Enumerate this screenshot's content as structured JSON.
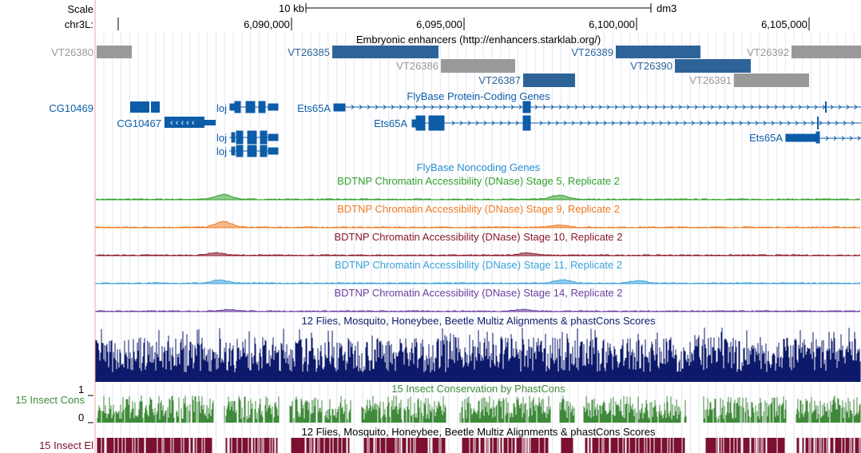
{
  "ruler": {
    "scale_label": "Scale",
    "chrom_label": "chr3L:",
    "scale_bar_text": "10 kb",
    "assembly": "dm3",
    "ticks": [
      "6,090,000",
      "6,095,000",
      "6,100,000",
      "6,105,000"
    ]
  },
  "tracks": {
    "enhancers": {
      "title": "Embryonic enhancers (http://enhancers.starklab.org/)",
      "items": [
        {
          "name": "VT26380",
          "color": "#999999"
        },
        {
          "name": "VT26385",
          "color": "#2e6399"
        },
        {
          "name": "VT26386",
          "color": "#999999"
        },
        {
          "name": "VT26387",
          "color": "#2e6399"
        },
        {
          "name": "VT26389",
          "color": "#2e6399"
        },
        {
          "name": "VT26390",
          "color": "#2e6399"
        },
        {
          "name": "VT26391",
          "color": "#999999"
        },
        {
          "name": "VT26392",
          "color": "#999999"
        }
      ]
    },
    "protein_coding": {
      "title": "FlyBase Protein-Coding Genes",
      "color": "#0c5ca8",
      "genes": [
        "CG10469",
        "CG10467",
        "loj",
        "loj",
        "loj",
        "Ets65A",
        "Ets65A",
        "Ets65A"
      ]
    },
    "noncoding": {
      "title": "FlyBase Noncoding Genes",
      "color": "#2a8fd0"
    },
    "dnase": [
      {
        "title": "BDTNP Chromatin Accessibility (DNase) Stage 5, Replicate 2",
        "color": "#33a02c"
      },
      {
        "title": "BDTNP Chromatin Accessibility (DNase) Stage 9, Replicate 2",
        "color": "#f07b22"
      },
      {
        "title": "BDTNP Chromatin Accessibility (DNase) Stage 10, Replicate 2",
        "color": "#8b1a2b"
      },
      {
        "title": "BDTNP Chromatin Accessibility (DNase) Stage 11, Replicate 2",
        "color": "#3aa3d8"
      },
      {
        "title": "BDTNP Chromatin Accessibility (DNase) Stage 14, Replicate 2",
        "color": "#6b3fa0"
      }
    ],
    "multiz": {
      "title": "12 Flies, Mosquito, Honeybee, Beetle Multiz Alignments & phastCons Scores",
      "color": "#0d1a6b"
    },
    "phastcons": {
      "title": "15 Insect Conservation by PhastCons",
      "side_label": "15 Insect Cons",
      "y_max": "1",
      "y_min": "0",
      "color": "#3f8a3a"
    },
    "elements": {
      "title": "12 Flies, Mosquito, Honeybee, Beetle Multiz Alignments & phastCons Scores",
      "side_label": "15 Insect El",
      "color": "#7b1030"
    }
  }
}
